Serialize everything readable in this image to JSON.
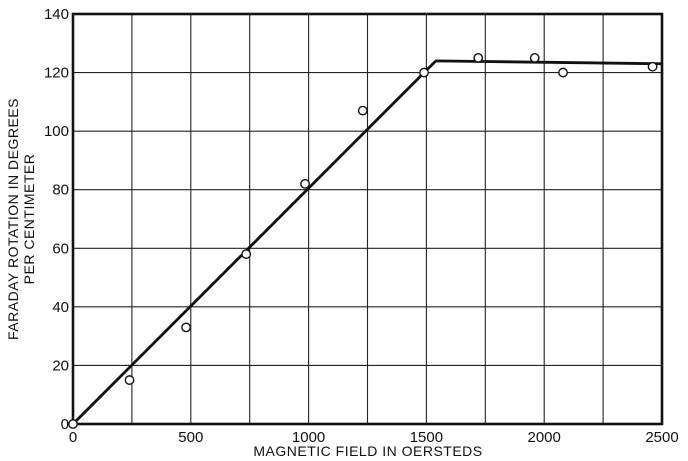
{
  "chart_data": {
    "type": "scatter",
    "title": "",
    "xlabel": "MAGNETIC FIELD IN OERSTEDS",
    "ylabel_line1": "FARADAY ROTATION IN DEGREES",
    "ylabel_line2": "PER CENTIMETER",
    "xlim": [
      0,
      2500
    ],
    "ylim": [
      0,
      140
    ],
    "xticks": [
      0,
      500,
      1000,
      1500,
      2000,
      2500
    ],
    "yticks": [
      0,
      20,
      40,
      60,
      80,
      100,
      120,
      140
    ],
    "xtick_labels": [
      "0",
      "500",
      "1000",
      "1500",
      "2000",
      "2500"
    ],
    "ytick_labels": [
      "0",
      "20",
      "40",
      "60",
      "80",
      "100",
      "120",
      "140"
    ],
    "grid": true,
    "series": [
      {
        "kind": "points",
        "marker": "open-circle",
        "x": [
          0,
          240,
          480,
          735,
          985,
          1230,
          1490,
          1720,
          1960,
          2080,
          2460
        ],
        "y": [
          0,
          15,
          33,
          58,
          82,
          107,
          120,
          125,
          125,
          120,
          122
        ]
      },
      {
        "kind": "fit-line",
        "x": [
          0,
          1540,
          2500
        ],
        "y": [
          0,
          124,
          123
        ]
      }
    ],
    "color": "#111111"
  }
}
